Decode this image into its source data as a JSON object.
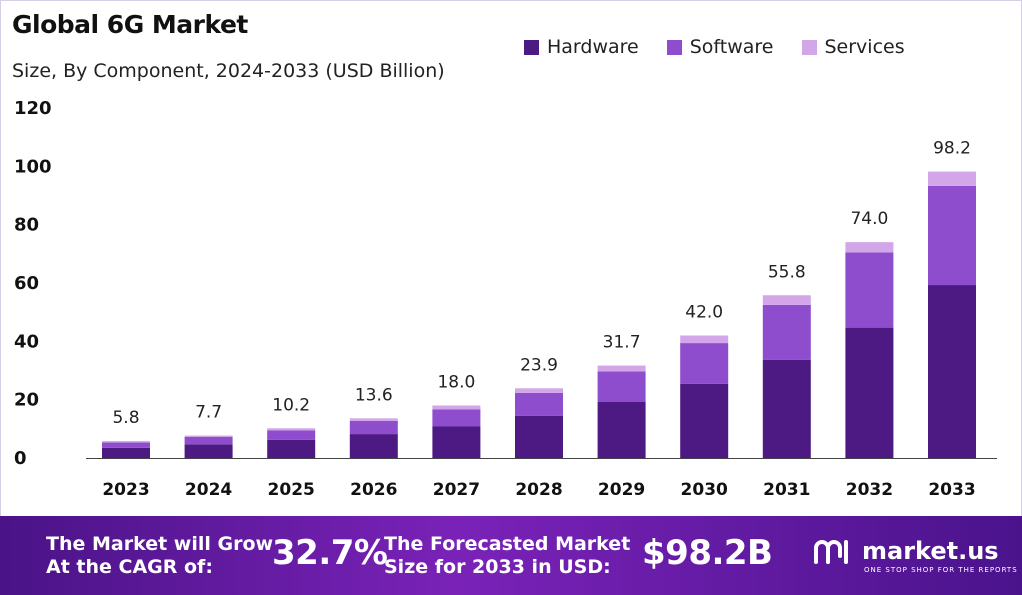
{
  "title": "Global 6G Market",
  "subtitle": "Size, By Component, 2024-2033 (USD Billion)",
  "colors": {
    "hardware": "#4c1a82",
    "software": "#8e4dcc",
    "services": "#d3a6ea",
    "axis": "#444444",
    "footer_start": "#4a1387",
    "footer_end": "#7a22b8"
  },
  "legend": [
    {
      "label": "Hardware"
    },
    {
      "label": "Software"
    },
    {
      "label": "Services"
    }
  ],
  "chart_data": {
    "type": "bar",
    "stacked": true,
    "title": "Global 6G Market",
    "subtitle": "Size, By Component, 2024-2033 (USD Billion)",
    "categories": [
      "2023",
      "2024",
      "2025",
      "2026",
      "2027",
      "2028",
      "2029",
      "2030",
      "2031",
      "2032",
      "2033"
    ],
    "series": [
      {
        "name": "Hardware",
        "values": [
          3.5,
          4.7,
          6.2,
          8.2,
          10.8,
          14.5,
          19.2,
          25.4,
          33.7,
          44.7,
          59.3
        ]
      },
      {
        "name": "Software",
        "values": [
          1.8,
          2.5,
          3.3,
          4.5,
          5.9,
          7.8,
          10.5,
          14.0,
          18.8,
          25.8,
          34.0
        ]
      },
      {
        "name": "Services",
        "values": [
          0.5,
          0.5,
          0.7,
          0.9,
          1.3,
          1.6,
          2.0,
          2.6,
          3.3,
          3.5,
          4.9
        ]
      }
    ],
    "totals": [
      "5.8",
      "7.7",
      "10.2",
      "13.6",
      "18.0",
      "23.9",
      "31.7",
      "42.0",
      "55.8",
      "74.0",
      "98.2"
    ],
    "yticks": [
      0,
      20,
      40,
      60,
      80,
      100,
      120
    ],
    "ylim": [
      0,
      120
    ],
    "xlabel": "",
    "ylabel": "",
    "grid": false,
    "legend_position": "top-right"
  },
  "footer": {
    "cagr_line1": "The Market will Grow",
    "cagr_line2": "At the CAGR of:",
    "cagr_value": "32.7%",
    "forecast_line1": "The Forecasted Market",
    "forecast_line2": "Size for 2033 in USD:",
    "forecast_value": "$98.2B",
    "logo_name": "market.us",
    "logo_tagline": "ONE STOP SHOP FOR THE REPORTS",
    "logo_icon": "market-us-logo-icon"
  }
}
